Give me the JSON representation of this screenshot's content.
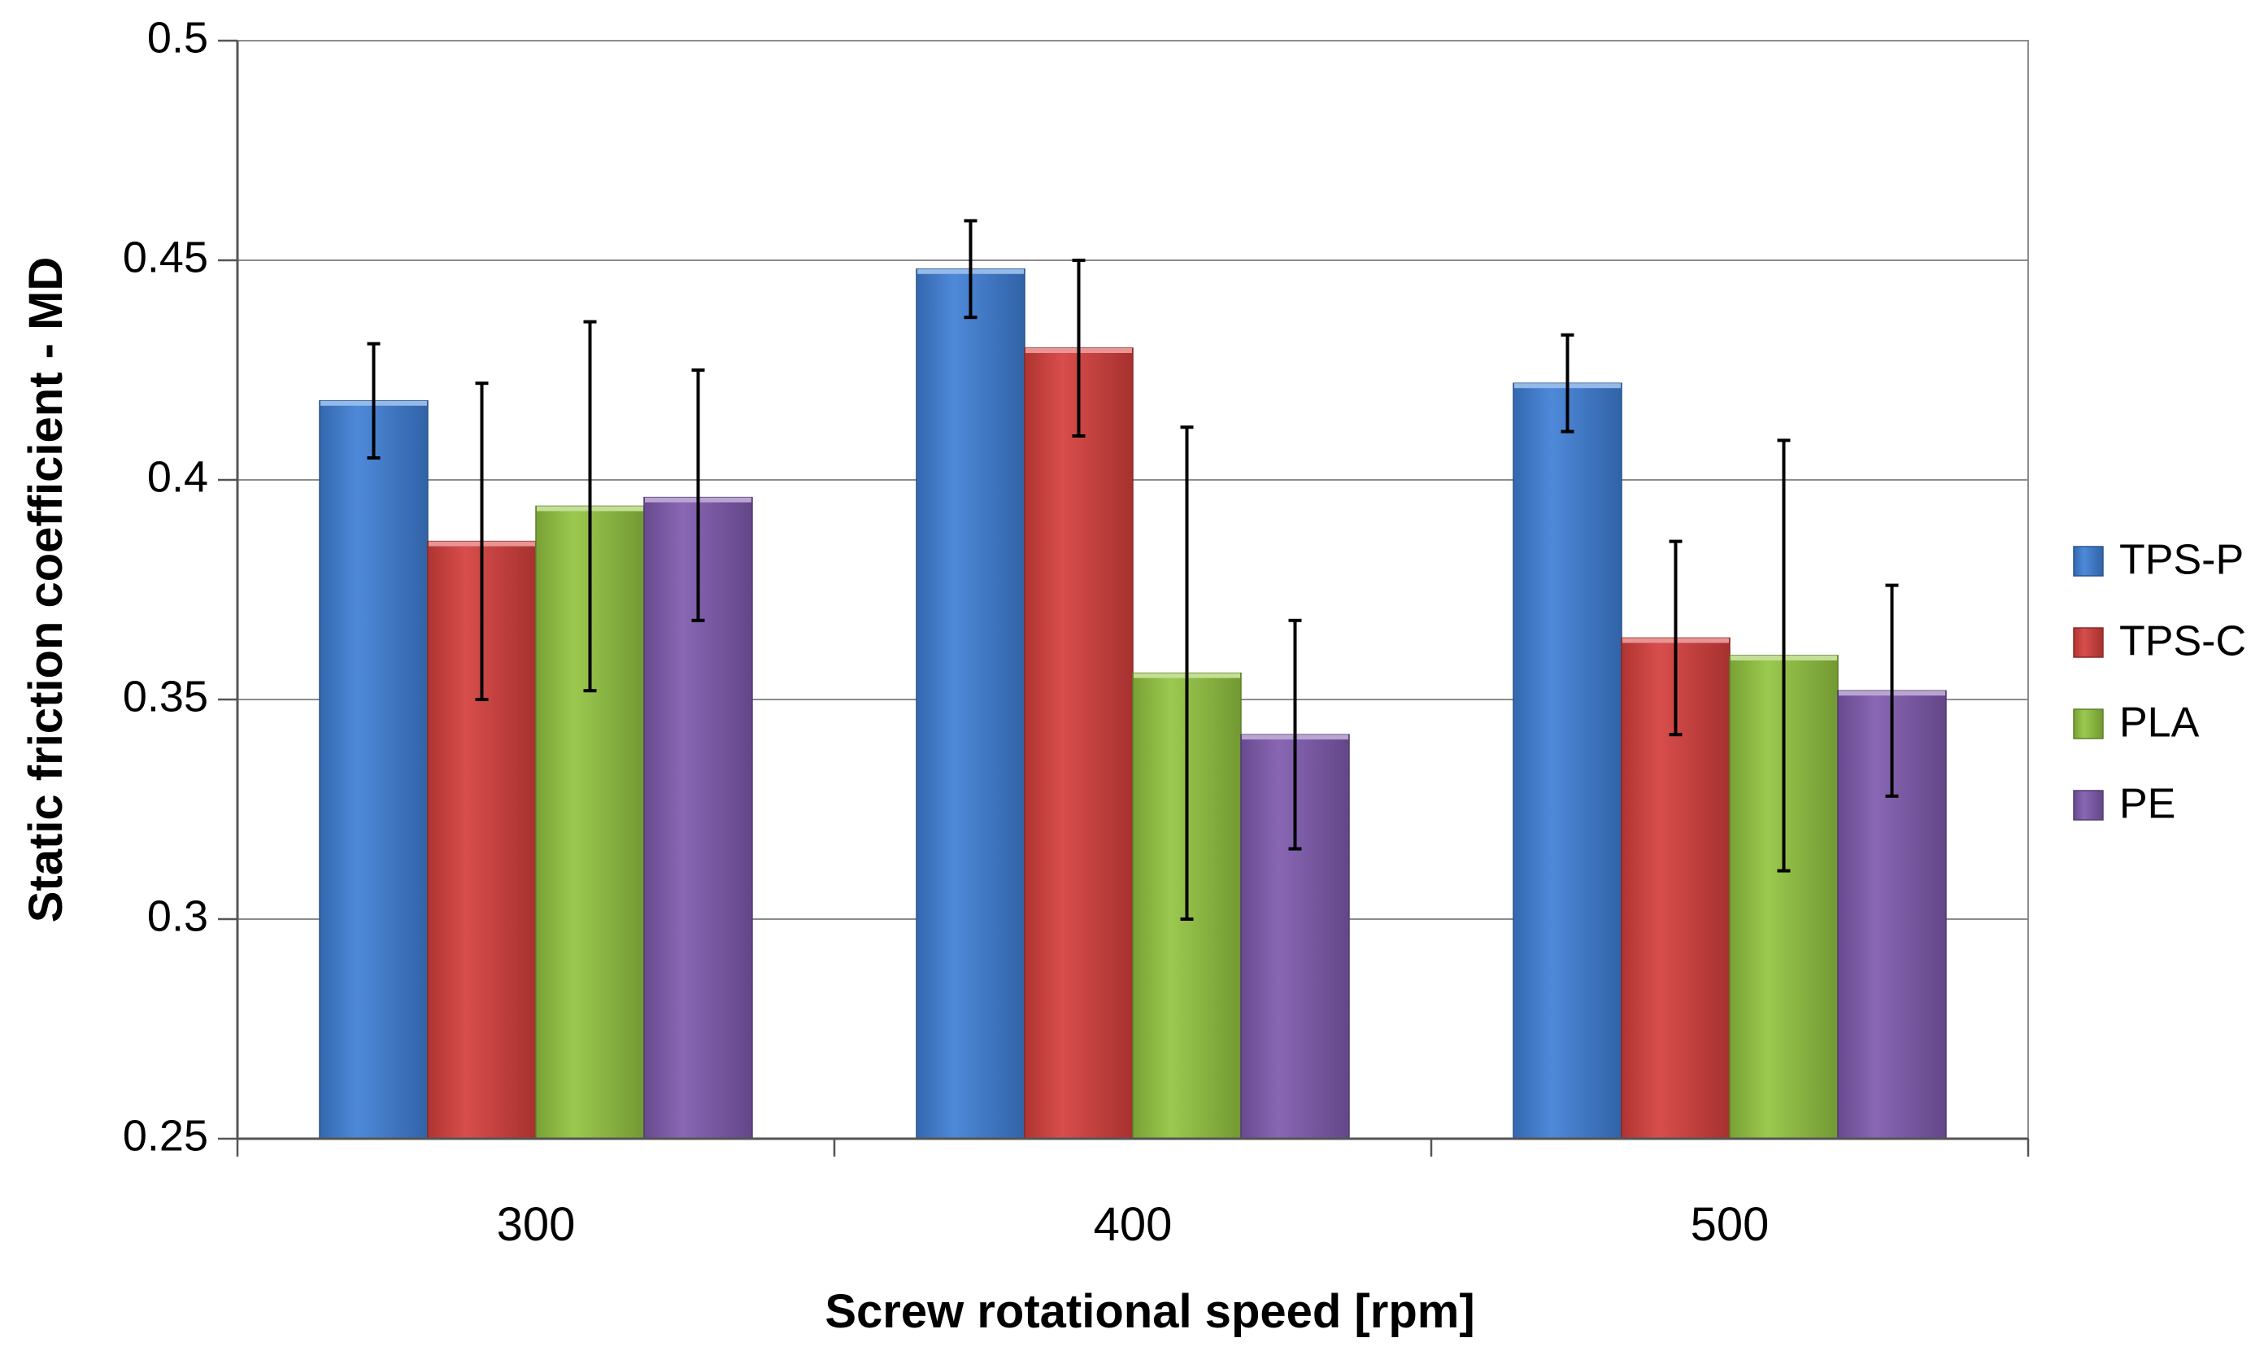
{
  "chart_data": {
    "type": "bar",
    "title": "",
    "xlabel": "Screw rotational speed [rpm]",
    "ylabel": "Static friction coefficient  - MD",
    "ylim": [
      0.25,
      0.5
    ],
    "yticks": [
      0.25,
      0.3,
      0.35,
      0.4,
      0.45,
      0.5
    ],
    "ytick_labels": [
      "0.25",
      "0.3",
      "0.35",
      "0.4",
      "0.45",
      "0.5"
    ],
    "grid": true,
    "legend_position": "right",
    "categories": [
      "300",
      "400",
      "500"
    ],
    "series": [
      {
        "name": "TPS-P",
        "color": "#3f7fd6",
        "values": [
          0.418,
          0.448,
          0.422
        ],
        "err_low": [
          0.405,
          0.437,
          0.411
        ],
        "err_high": [
          0.431,
          0.459,
          0.433
        ]
      },
      {
        "name": "TPS-C",
        "color": "#d53f3c",
        "values": [
          0.386,
          0.43,
          0.364
        ],
        "err_low": [
          0.35,
          0.41,
          0.342
        ],
        "err_high": [
          0.422,
          0.45,
          0.386
        ]
      },
      {
        "name": "PLA",
        "color": "#92c440",
        "values": [
          0.394,
          0.356,
          0.36
        ],
        "err_low": [
          0.352,
          0.3,
          0.311
        ],
        "err_high": [
          0.436,
          0.412,
          0.409
        ]
      },
      {
        "name": "PE",
        "color": "#7f5aae",
        "values": [
          0.396,
          0.342,
          0.352
        ],
        "err_low": [
          0.368,
          0.316,
          0.328
        ],
        "err_high": [
          0.425,
          0.368,
          0.376
        ]
      }
    ]
  }
}
